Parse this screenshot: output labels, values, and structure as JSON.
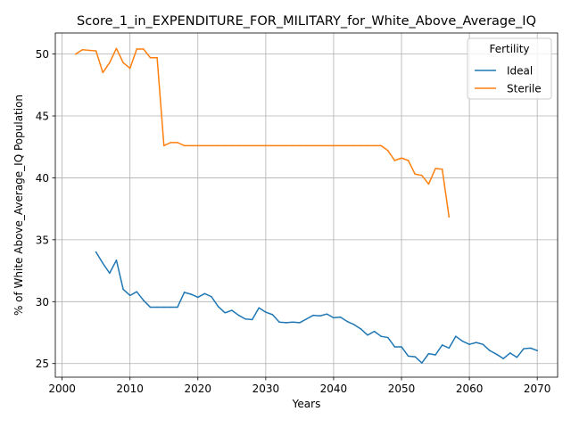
{
  "chart_data": {
    "type": "line",
    "title": "Score_1_in_EXPENDITURE_FOR_MILITARY_for_White_Above_Average_IQ",
    "xlabel": "Years",
    "ylabel": "% of White Above_Average_IQ Population",
    "xlim": [
      1999,
      2073
    ],
    "ylim": [
      23.9,
      51.7
    ],
    "xticks": [
      2000,
      2010,
      2020,
      2030,
      2040,
      2050,
      2060,
      2070
    ],
    "yticks": [
      25,
      30,
      35,
      40,
      45,
      50
    ],
    "grid": true,
    "legend": {
      "title": "Fertility",
      "placement": "top-right"
    },
    "series": [
      {
        "name": "Ideal",
        "color": "#1f77b4",
        "x": [
          2005,
          2006,
          2007,
          2008,
          2009,
          2010,
          2011,
          2012,
          2013,
          2014,
          2015,
          2016,
          2017,
          2018,
          2019,
          2020,
          2021,
          2022,
          2023,
          2024,
          2025,
          2026,
          2027,
          2028,
          2029,
          2030,
          2031,
          2032,
          2033,
          2034,
          2035,
          2036,
          2037,
          2038,
          2039,
          2040,
          2041,
          2042,
          2043,
          2044,
          2045,
          2046,
          2047,
          2048,
          2049,
          2050,
          2051,
          2052,
          2053,
          2054,
          2055,
          2056,
          2057,
          2058,
          2059,
          2060,
          2061,
          2062,
          2063,
          2064,
          2065,
          2066,
          2067,
          2068,
          2069,
          2070
        ],
        "y": [
          34.0,
          33.1,
          32.3,
          33.35,
          31.0,
          30.5,
          30.8,
          30.1,
          29.55,
          29.55,
          29.55,
          29.55,
          29.55,
          30.75,
          30.6,
          30.35,
          30.65,
          30.4,
          29.6,
          29.1,
          29.3,
          28.9,
          28.6,
          28.55,
          29.5,
          29.15,
          28.95,
          28.35,
          28.3,
          28.35,
          28.3,
          28.6,
          28.9,
          28.85,
          29.0,
          28.7,
          28.75,
          28.4,
          28.15,
          27.8,
          27.3,
          27.6,
          27.2,
          27.1,
          26.35,
          26.35,
          25.6,
          25.55,
          25.05,
          25.8,
          25.7,
          26.5,
          26.25,
          27.2,
          26.8,
          26.55,
          26.7,
          26.55,
          26.05,
          25.75,
          25.4,
          25.85,
          25.5,
          26.2,
          26.25,
          26.05
        ]
      },
      {
        "name": "Sterile",
        "color": "#ff7f0e",
        "x": [
          2002,
          2003,
          2004,
          2005,
          2006,
          2007,
          2008,
          2009,
          2010,
          2011,
          2012,
          2013,
          2014,
          2015,
          2016,
          2017,
          2018,
          2019,
          2020,
          2021,
          2022,
          2023,
          2024,
          2025,
          2026,
          2027,
          2028,
          2029,
          2030,
          2031,
          2032,
          2033,
          2034,
          2035,
          2036,
          2037,
          2038,
          2039,
          2040,
          2041,
          2042,
          2043,
          2044,
          2045,
          2046,
          2047,
          2048,
          2049,
          2050,
          2051,
          2052,
          2053,
          2054,
          2055,
          2056,
          2057
        ],
        "y": [
          50.0,
          50.35,
          50.3,
          50.25,
          48.5,
          49.3,
          50.45,
          49.3,
          48.85,
          50.4,
          50.4,
          49.7,
          49.7,
          42.6,
          42.85,
          42.85,
          42.6,
          42.6,
          42.6,
          42.6,
          42.6,
          42.6,
          42.6,
          42.6,
          42.6,
          42.6,
          42.6,
          42.6,
          42.6,
          42.6,
          42.6,
          42.6,
          42.6,
          42.6,
          42.6,
          42.6,
          42.6,
          42.6,
          42.6,
          42.6,
          42.6,
          42.6,
          42.6,
          42.6,
          42.6,
          42.6,
          42.2,
          41.4,
          41.6,
          41.4,
          40.3,
          40.2,
          39.5,
          40.75,
          40.7,
          36.85
        ]
      }
    ]
  }
}
